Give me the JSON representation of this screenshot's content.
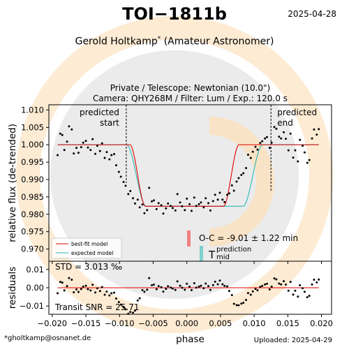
{
  "header": {
    "title": "TOI−1811b",
    "date": "2025-04-28",
    "observer": "Gerold Holtkamp",
    "observer_mark": "*",
    "observer_role": "(Amateur Astronomer)",
    "setup_line1": "Private / Telescope: Newtonian (10.0\")",
    "setup_line2": "Camera: QHY268M / Filter: Lum / Exp.: 120.0 s"
  },
  "footer": {
    "email": "*gholtkamp@osnanet.de",
    "uploaded": "Uploaded: 2025-04-29"
  },
  "colors": {
    "best_fit": "#e00000",
    "expected": "#2ab8b8",
    "points": "#000000",
    "oc_marker": "#f08080",
    "tmid_marker": "#80d0d0",
    "watermark_ring": "#fdebd3",
    "watermark_disc": "#ebebeb"
  },
  "chart_data": [
    {
      "type": "scatter",
      "panel": "light-curve",
      "ylabel": "relative flux (de-trended)",
      "xlim": [
        -0.0205,
        0.0215
      ],
      "ylim": [
        0.9665,
        1.0115
      ],
      "yticks": [
        0.97,
        0.975,
        0.98,
        0.985,
        0.99,
        0.995,
        1.0,
        1.005,
        1.01
      ],
      "ytick_labels": [
        "0.970",
        "0.975",
        "0.980",
        "0.985",
        "0.990",
        "0.995",
        "1.000",
        "1.005",
        "1.010"
      ],
      "predicted_start": {
        "x": -0.009,
        "label_line1": "predicted",
        "label_line2": "start"
      },
      "predicted_end": {
        "x": 0.0125,
        "label_line1": "predicted",
        "label_line2": "end"
      },
      "oc_text": "O-C = -9.01 ± 1.22 min",
      "tmid_label": "T",
      "tmid_super": "prediction",
      "tmid_sub": "mid",
      "legend": [
        "best-fit model",
        "expected model"
      ],
      "legend_position": "lower-left",
      "models": {
        "best_fit": {
          "name": "best-fit model",
          "center": -0.00035,
          "half_width": 0.0081,
          "ingress": 0.0023,
          "depth": 0.0177
        },
        "expected": {
          "name": "expected model",
          "center": 0.00115,
          "half_width": 0.0101,
          "ingress": 0.0029,
          "depth": 0.0177
        }
      },
      "x": [
        -0.0192,
        -0.0188,
        -0.0185,
        -0.0182,
        -0.0178,
        -0.0175,
        -0.0171,
        -0.0168,
        -0.0164,
        -0.0161,
        -0.0157,
        -0.0154,
        -0.015,
        -0.0147,
        -0.0143,
        -0.014,
        -0.0136,
        -0.0133,
        -0.0129,
        -0.0126,
        -0.0122,
        -0.0119,
        -0.0115,
        -0.0112,
        -0.0108,
        -0.0105,
        -0.0101,
        -0.0098,
        -0.0094,
        -0.0091,
        -0.0087,
        -0.0084,
        -0.008,
        -0.0077,
        -0.0073,
        -0.007,
        -0.0066,
        -0.0063,
        -0.0059,
        -0.0056,
        -0.0052,
        -0.0049,
        -0.0045,
        -0.0042,
        -0.0038,
        -0.0035,
        -0.0031,
        -0.0028,
        -0.0024,
        -0.0021,
        -0.0017,
        -0.0014,
        -0.001,
        -0.0007,
        -0.0003,
        0.0,
        0.0004,
        0.0007,
        0.0011,
        0.0014,
        0.0018,
        0.0021,
        0.0025,
        0.0028,
        0.0032,
        0.0035,
        0.0039,
        0.0042,
        0.0046,
        0.0049,
        0.0053,
        0.0056,
        0.006,
        0.0063,
        0.0067,
        0.007,
        0.0074,
        0.0077,
        0.0081,
        0.0084,
        0.0088,
        0.0091,
        0.0095,
        0.0098,
        0.0102,
        0.0105,
        0.0109,
        0.0112,
        0.0116,
        0.0119,
        0.0123,
        0.0126,
        0.013,
        0.0133,
        0.0137,
        0.014,
        0.0144,
        0.0147,
        0.0151,
        0.0154,
        0.0158,
        0.0161,
        0.0165,
        0.0168,
        0.0172,
        0.0175,
        0.0179,
        0.0182,
        0.0186,
        0.0189,
        0.0193,
        0.0196
      ],
      "y": [
        0.997,
        1.0032,
        1.0028,
        0.9985,
        1.0009,
        1.0053,
        1.0044,
        0.9975,
        0.9991,
        0.9977,
        0.9993,
        1.0006,
        1.0011,
        0.9992,
        0.9985,
        1.0016,
        0.9974,
        0.9997,
        0.9982,
        1.0004,
        0.9962,
        0.9979,
        0.9958,
        0.997,
        0.9973,
        0.9941,
        0.9922,
        0.9908,
        0.9893,
        0.9882,
        0.9858,
        0.9867,
        0.9846,
        0.9831,
        0.9842,
        0.982,
        0.9828,
        0.9803,
        0.9812,
        0.9876,
        0.9837,
        0.984,
        0.9815,
        0.9832,
        0.9826,
        0.9802,
        0.9817,
        0.9831,
        0.9824,
        0.9818,
        0.9811,
        0.9858,
        0.9834,
        0.9823,
        0.9812,
        0.9845,
        0.9829,
        0.981,
        0.9848,
        0.9824,
        0.9829,
        0.9834,
        0.982,
        0.9846,
        0.9832,
        0.9811,
        0.9838,
        0.9856,
        0.9842,
        0.9862,
        0.9842,
        0.9835,
        0.9856,
        0.986,
        0.9883,
        0.9868,
        0.9894,
        0.9904,
        0.9913,
        0.9918,
        0.9933,
        0.9971,
        0.9962,
        0.998,
        0.9994,
        0.9986,
        1.0005,
        1.001,
        1.0018,
        1.0022,
        0.9991,
        1.0006,
        1.0051,
        1.0046,
        1.0023,
        1.0018,
        1.0036,
        1.0017,
        0.9984,
        1.0032,
        0.9963,
        0.9984,
        0.9952,
        1.0014,
        0.9997,
        0.9978,
        0.9948,
        0.9956,
        1.0018,
        1.0044,
        1.0029,
        1.0045
      ]
    },
    {
      "type": "scatter",
      "panel": "residuals",
      "ylabel": "residuals",
      "xlabel": "phase",
      "xlim": [
        -0.0205,
        0.0215
      ],
      "ylim": [
        -0.0145,
        0.0145
      ],
      "yticks": [
        -0.01,
        0.0,
        0.01
      ],
      "ytick_labels": [
        "−0.01",
        "0.00",
        "0.01"
      ],
      "xticks": [
        -0.02,
        -0.015,
        -0.01,
        -0.005,
        0.0,
        0.005,
        0.01,
        0.015,
        0.02
      ],
      "xtick_labels": [
        "−0.020",
        "−0.015",
        "−0.010",
        "−0.005",
        "0.000",
        "0.005",
        "0.010",
        "0.015",
        "0.020"
      ],
      "std_text": "STD = 3.013 ‰",
      "snr_text": "Transit SNR = 25.71"
    }
  ]
}
